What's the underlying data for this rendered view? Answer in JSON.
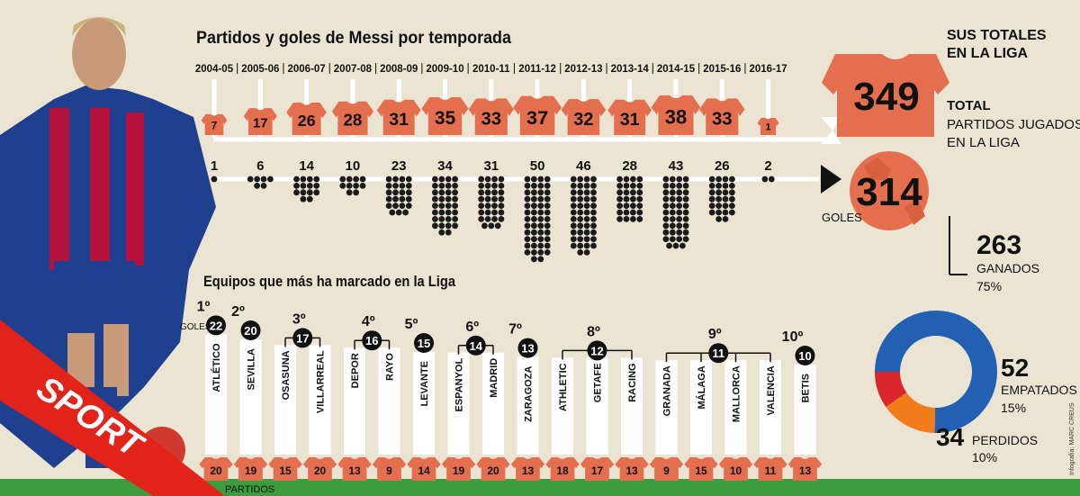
{
  "colors": {
    "background": "#ece4d3",
    "jersey": "#e46f4e",
    "dot": "#1b1b1b",
    "won": "#2260b3",
    "draw": "#f07d1a",
    "lost": "#d9262c",
    "green": "#3d9c3e",
    "sport_red": "#e2231a"
  },
  "header": {
    "title": "Partidos y goles de Messi por temporada",
    "totals_title_1": "SUS TOTALES",
    "totals_title_2": "EN LA LIGA",
    "total_label_1": "TOTAL",
    "total_label_2": "PARTIDOS JUGADOS",
    "total_label_3": "EN LA LIGA",
    "goals_label": "GOLES"
  },
  "totals": {
    "matches": "349",
    "goals": "314"
  },
  "results": {
    "won_value": "263",
    "won_label": "GANADOS",
    "won_pct": "75%",
    "draw_value": "52",
    "draw_label": "EMPATADOS",
    "draw_pct": "15%",
    "lost_value": "34",
    "lost_label": "PERDIDOS",
    "lost_pct": "10%"
  },
  "teams_section": {
    "title": "Equipos que más ha marcado en la Liga",
    "goals_label": "GOLES",
    "matches_label": "PARTIDOS"
  },
  "brand": {
    "logo": "SPORT",
    "credit": "Infografía: MARC CREUS"
  },
  "chart_data": [
    {
      "type": "bar",
      "title": "Partidos y goles de Messi por temporada",
      "categories": [
        "2004-05",
        "2005-06",
        "2006-07",
        "2007-08",
        "2008-09",
        "2009-10",
        "2010-11",
        "2011-12",
        "2012-13",
        "2013-14",
        "2014-15",
        "2015-16",
        "2016-17"
      ],
      "series": [
        {
          "name": "PARTIDOS",
          "values": [
            7,
            17,
            26,
            28,
            31,
            35,
            33,
            37,
            32,
            31,
            38,
            33,
            1
          ]
        },
        {
          "name": "GOLES",
          "values": [
            1,
            6,
            14,
            10,
            23,
            34,
            31,
            50,
            46,
            28,
            43,
            26,
            2
          ]
        }
      ]
    },
    {
      "type": "pie",
      "categories": [
        "GANADOS",
        "EMPATADOS",
        "PERDIDOS"
      ],
      "values": [
        263,
        52,
        34
      ]
    },
    {
      "type": "bar",
      "title": "Equipos que más ha marcado en la Liga",
      "groups": [
        {
          "rank": "1º",
          "goals": "22",
          "teams": [
            {
              "name": "ATLÉTICO",
              "matches": "20"
            }
          ]
        },
        {
          "rank": "2º",
          "goals": "20",
          "teams": [
            {
              "name": "SEVILLA",
              "matches": "19"
            }
          ]
        },
        {
          "rank": "3º",
          "goals": "17",
          "teams": [
            {
              "name": "OSASUNA",
              "matches": "15"
            },
            {
              "name": "VILLARREAL",
              "matches": "20"
            }
          ]
        },
        {
          "rank": "4º",
          "goals": "16",
          "teams": [
            {
              "name": "DEPOR",
              "matches": "13"
            },
            {
              "name": "RAYO",
              "matches": "9"
            }
          ]
        },
        {
          "rank": "5º",
          "goals": "15",
          "teams": [
            {
              "name": "LEVANTE",
              "matches": "14"
            }
          ]
        },
        {
          "rank": "6º",
          "goals": "14",
          "teams": [
            {
              "name": "ESPANYOL",
              "matches": "19"
            },
            {
              "name": "MADRID",
              "matches": "20"
            }
          ]
        },
        {
          "rank": "7º",
          "goals": "13",
          "teams": [
            {
              "name": "ZARAGOZA",
              "matches": "13"
            }
          ]
        },
        {
          "rank": "8º",
          "goals": "12",
          "teams": [
            {
              "name": "ATHLETIC",
              "matches": "18"
            },
            {
              "name": "GETAFE",
              "matches": "17"
            },
            {
              "name": "RACING",
              "matches": "13"
            }
          ]
        },
        {
          "rank": "9º",
          "goals": "11",
          "teams": [
            {
              "name": "GRANADA",
              "matches": "9"
            },
            {
              "name": "MÁLAGA",
              "matches": "15"
            },
            {
              "name": "MALLORCA",
              "matches": "10"
            },
            {
              "name": "VALENCIA",
              "matches": "11"
            }
          ]
        },
        {
          "rank": "10º",
          "goals": "10",
          "teams": [
            {
              "name": "BETIS",
              "matches": "13"
            }
          ]
        }
      ]
    }
  ]
}
